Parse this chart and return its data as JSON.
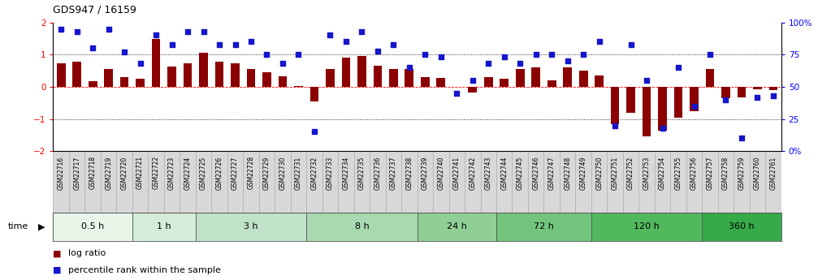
{
  "title": "GDS947 / 16159",
  "samples": [
    "GSM22716",
    "GSM22717",
    "GSM22718",
    "GSM22719",
    "GSM22720",
    "GSM22721",
    "GSM22722",
    "GSM22723",
    "GSM22724",
    "GSM22725",
    "GSM22726",
    "GSM22727",
    "GSM22728",
    "GSM22729",
    "GSM22730",
    "GSM22731",
    "GSM22732",
    "GSM22733",
    "GSM22734",
    "GSM22735",
    "GSM22736",
    "GSM22737",
    "GSM22738",
    "GSM22739",
    "GSM22740",
    "GSM22741",
    "GSM22742",
    "GSM22743",
    "GSM22744",
    "GSM22745",
    "GSM22746",
    "GSM22747",
    "GSM22748",
    "GSM22749",
    "GSM22750",
    "GSM22751",
    "GSM22752",
    "GSM22753",
    "GSM22754",
    "GSM22755",
    "GSM22756",
    "GSM22757",
    "GSM22758",
    "GSM22759",
    "GSM22760",
    "GSM22761"
  ],
  "log_ratio": [
    0.72,
    0.78,
    0.18,
    0.55,
    0.3,
    0.25,
    1.48,
    0.62,
    0.73,
    1.05,
    0.78,
    0.72,
    0.55,
    0.45,
    0.32,
    0.03,
    -0.45,
    0.55,
    0.9,
    0.95,
    0.65,
    0.55,
    0.55,
    0.3,
    0.28,
    0.0,
    -0.18,
    0.3,
    0.25,
    0.55,
    0.6,
    0.2,
    0.6,
    0.5,
    0.35,
    -1.15,
    -0.8,
    -1.55,
    -1.35,
    -0.95,
    -0.75,
    0.55,
    -0.35,
    -0.32,
    -0.08,
    -0.1
  ],
  "percentile": [
    95,
    93,
    80,
    95,
    77,
    68,
    90,
    83,
    93,
    93,
    83,
    83,
    85,
    75,
    68,
    75,
    15,
    90,
    85,
    93,
    78,
    83,
    65,
    75,
    73,
    45,
    55,
    68,
    73,
    68,
    75,
    75,
    70,
    75,
    85,
    20,
    83,
    55,
    18,
    65,
    35,
    75,
    40,
    10,
    42,
    43
  ],
  "time_groups": [
    {
      "label": "0.5 h",
      "start": 0,
      "end": 5,
      "color": "#e8f5e9"
    },
    {
      "label": "1 h",
      "start": 5,
      "end": 9,
      "color": "#d4edda"
    },
    {
      "label": "3 h",
      "start": 9,
      "end": 16,
      "color": "#c0e2c8"
    },
    {
      "label": "8 h",
      "start": 16,
      "end": 23,
      "color": "#a8d9b0"
    },
    {
      "label": "24 h",
      "start": 23,
      "end": 28,
      "color": "#8fcf96"
    },
    {
      "label": "72 h",
      "start": 28,
      "end": 34,
      "color": "#72c47c"
    },
    {
      "label": "120 h",
      "start": 34,
      "end": 41,
      "color": "#52b85e"
    },
    {
      "label": "360 h",
      "start": 41,
      "end": 46,
      "color": "#36aa48"
    }
  ],
  "bar_color": "#8B0000",
  "dot_color": "#1515cc",
  "ylim_left": [
    -2,
    2
  ],
  "ylim_right": [
    0,
    100
  ],
  "yticks_left": [
    -2,
    -1,
    0,
    1,
    2
  ],
  "yticks_right": [
    0,
    25,
    50,
    75,
    100
  ],
  "ytick_labels_right": [
    "0%",
    "25",
    "50",
    "75",
    "100%"
  ],
  "label_bg_color": "#d8d8d8"
}
